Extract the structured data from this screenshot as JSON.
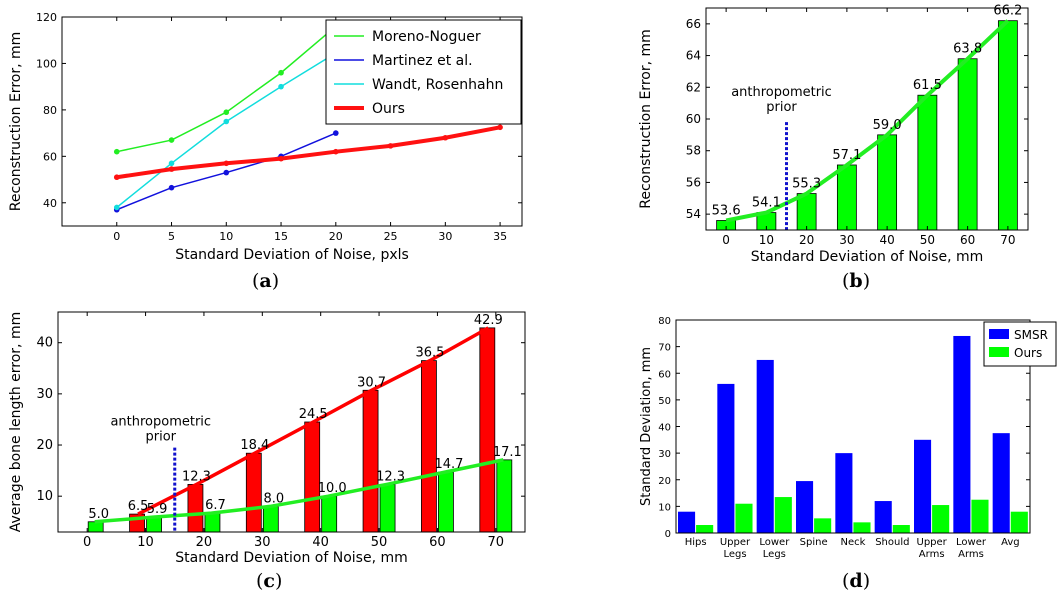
{
  "captions": [
    "(a)",
    "(b)",
    "(c)",
    "(d)"
  ],
  "captions_letters": [
    "a",
    "b",
    "c",
    "d"
  ],
  "chart_data": [
    {
      "id": "a",
      "type": "line",
      "xlabel": "Standard Deviation of Noise, pxls",
      "ylabel": "Reconstruction Error, mm",
      "xlim": [
        -5,
        37
      ],
      "ylim": [
        30,
        120
      ],
      "xticks": [
        0,
        5,
        10,
        15,
        20,
        25,
        30,
        35
      ],
      "yticks": [
        40,
        60,
        80,
        100,
        120
      ],
      "legend": "top-right",
      "series": [
        {
          "name": "Moreno-Noguer",
          "color": "#22ee22",
          "x": [
            0,
            5,
            10,
            15,
            20
          ],
          "values": [
            62.0,
            67.0,
            79.0,
            96.0,
            116.0
          ]
        },
        {
          "name": "Martinez et al.",
          "color": "#1111dd",
          "x": [
            0,
            5,
            10,
            15,
            20
          ],
          "values": [
            37.0,
            46.5,
            53.0,
            60.0,
            70.0
          ]
        },
        {
          "name": "Wandt, Rosenhahn",
          "color": "#11dddd",
          "x": [
            0,
            5,
            10,
            15,
            20
          ],
          "values": [
            38.0,
            57.0,
            75.0,
            90.0,
            104.5
          ]
        },
        {
          "name": "Ours",
          "color": "#ff1111",
          "x": [
            0,
            5,
            10,
            15,
            20,
            25,
            30,
            35
          ],
          "values": [
            51.0,
            54.5,
            57.0,
            59.0,
            62.0,
            64.5,
            68.0,
            72.5
          ]
        }
      ]
    },
    {
      "id": "b",
      "type": "bar",
      "xlabel": "Standard Deviation of Noise, mm",
      "ylabel": "Reconstruction Error, mm",
      "categories": [
        "0",
        "10",
        "20",
        "30",
        "40",
        "50",
        "60",
        "70"
      ],
      "values": [
        53.6,
        54.1,
        55.3,
        57.1,
        59.0,
        61.5,
        63.8,
        66.2
      ],
      "data_labels": [
        "53.6",
        "54.1",
        "55.3",
        "57.1",
        "59.0",
        "61.5",
        "63.8",
        "66.2"
      ],
      "ylim": [
        53,
        67
      ],
      "yticks": [
        54,
        56,
        58,
        60,
        62,
        64,
        66
      ],
      "bar_color": "#00ff00",
      "line_color": "#22ee22",
      "annotation": {
        "text": [
          "anthropometric",
          "prior"
        ],
        "x": 15,
        "y_top": 59.8
      }
    },
    {
      "id": "c",
      "type": "bar",
      "xlabel": "Standard Deviation of Noise, mm",
      "ylabel": "Average bone length error, mm",
      "categories": [
        "0",
        "10",
        "20",
        "30",
        "40",
        "50",
        "60",
        "70"
      ],
      "ylim": [
        3,
        46
      ],
      "yticks": [
        10,
        20,
        30,
        40
      ],
      "series": [
        {
          "name": "",
          "color": "#ff0000",
          "values": [
            null,
            6.5,
            12.3,
            18.4,
            24.5,
            30.7,
            36.5,
            42.9
          ],
          "labels": [
            "",
            "6.5",
            "12.3",
            "18.4",
            "24.5",
            "30.7",
            "36.5",
            "42.9"
          ]
        },
        {
          "name": "",
          "color": "#00ff00",
          "values": [
            5.0,
            5.9,
            6.7,
            8.0,
            10.0,
            12.3,
            14.7,
            17.1
          ],
          "labels": [
            "5.0",
            "5.9",
            "6.7",
            "8.0",
            "10.0",
            "12.3",
            "14.7",
            "17.1"
          ]
        }
      ],
      "annotation": {
        "text": [
          "anthropometric",
          "prior"
        ],
        "x": 15,
        "y_top": 19.5
      }
    },
    {
      "id": "d",
      "type": "bar",
      "ylabel": "Standard Deviation, mm",
      "categories": [
        [
          "Hips"
        ],
        [
          "Upper",
          "Legs"
        ],
        [
          "Lower",
          "Legs"
        ],
        [
          "Spine"
        ],
        [
          "Neck"
        ],
        [
          "Should"
        ],
        [
          "Upper",
          "Arms"
        ],
        [
          "Lower",
          "Arms"
        ],
        [
          "Avg"
        ]
      ],
      "ylim": [
        0,
        80
      ],
      "yticks": [
        0,
        10,
        20,
        30,
        40,
        50,
        60,
        70,
        80
      ],
      "legend": "top-right",
      "series": [
        {
          "name": "SMSR",
          "color": "#0000ff",
          "values": [
            8,
            56,
            65,
            19.5,
            30,
            12,
            35,
            74,
            37.5
          ]
        },
        {
          "name": "Ours",
          "color": "#00ff00",
          "values": [
            3,
            11,
            13.5,
            5.5,
            4,
            3,
            10.5,
            12.5,
            8
          ]
        }
      ]
    }
  ]
}
